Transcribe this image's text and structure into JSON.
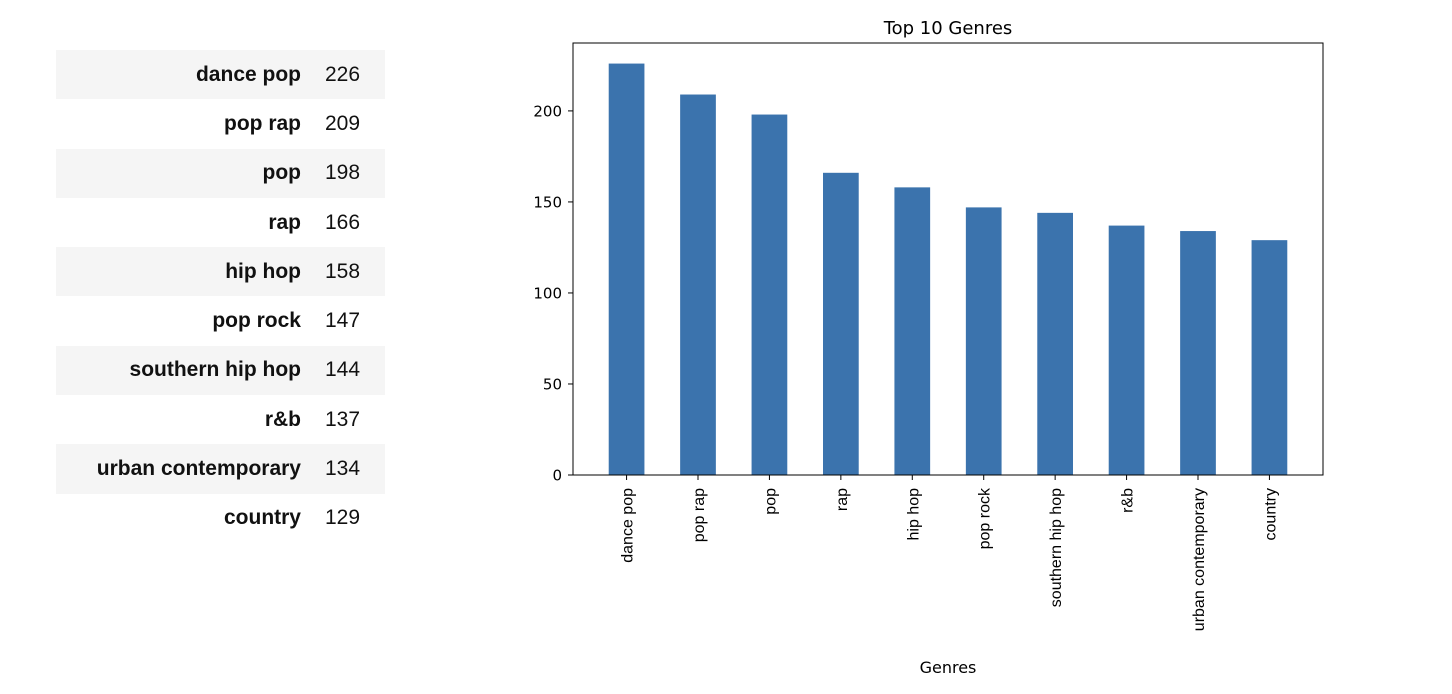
{
  "table": {
    "rows": [
      {
        "genre": "dance pop",
        "count": "226"
      },
      {
        "genre": "pop rap",
        "count": "209"
      },
      {
        "genre": "pop",
        "count": "198"
      },
      {
        "genre": "rap",
        "count": "166"
      },
      {
        "genre": "hip hop",
        "count": "158"
      },
      {
        "genre": "pop rock",
        "count": "147"
      },
      {
        "genre": "southern hip hop",
        "count": "144"
      },
      {
        "genre": "r&b",
        "count": "137"
      },
      {
        "genre": "urban contemporary",
        "count": "134"
      },
      {
        "genre": "country",
        "count": "129"
      }
    ]
  },
  "chart_data": {
    "type": "bar",
    "title": "Top 10 Genres",
    "xlabel": "Genres",
    "ylabel": "",
    "categories": [
      "dance pop",
      "pop rap",
      "pop",
      "rap",
      "hip hop",
      "pop rock",
      "southern hip hop",
      "r&b",
      "urban contemporary",
      "country"
    ],
    "values": [
      226,
      209,
      198,
      166,
      158,
      147,
      144,
      137,
      134,
      129
    ],
    "yticks": [
      0,
      50,
      100,
      150,
      200
    ],
    "ylim": [
      0,
      237.3
    ],
    "grid": false,
    "bar_color": "#3b73ad",
    "tick_label_rotation": "vertical"
  }
}
